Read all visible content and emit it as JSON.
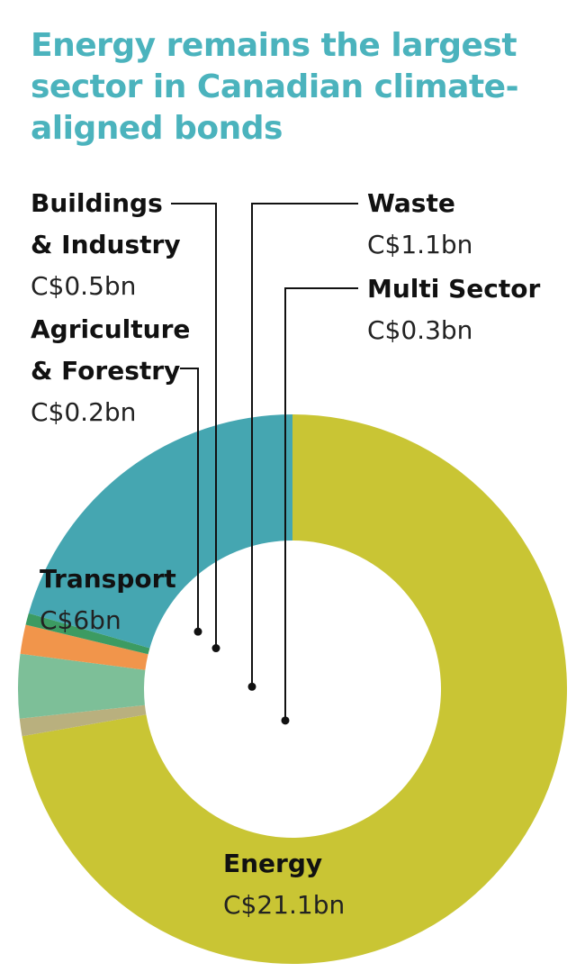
{
  "chart_data": {
    "type": "pie",
    "donut": true,
    "title": "Energy remains the largest sector in Canadian climate-aligned bonds",
    "categories": [
      "Energy",
      "Multi Sector",
      "Waste",
      "Buildings & Industry",
      "Agriculture & Forestry",
      "Transport"
    ],
    "values": [
      21.1,
      0.3,
      1.1,
      0.5,
      0.2,
      6
    ],
    "value_labels": [
      "C$21.1bn",
      "C$0.3bn",
      "C$1.1bn",
      "C$0.5bn",
      "C$0.2bn",
      "C$6bn"
    ],
    "label_lines": [
      [
        "Energy"
      ],
      [
        "Multi Sector"
      ],
      [
        "Waste"
      ],
      [
        "Buildings",
        "& Industry"
      ],
      [
        "Agriculture",
        "& Forestry"
      ],
      [
        "Transport"
      ]
    ],
    "colors": [
      "#c9c534",
      "#b9b07e",
      "#7dbf98",
      "#f1954b",
      "#3c9b62",
      "#45a6b1"
    ],
    "legend": "direct labels with leader lines"
  }
}
